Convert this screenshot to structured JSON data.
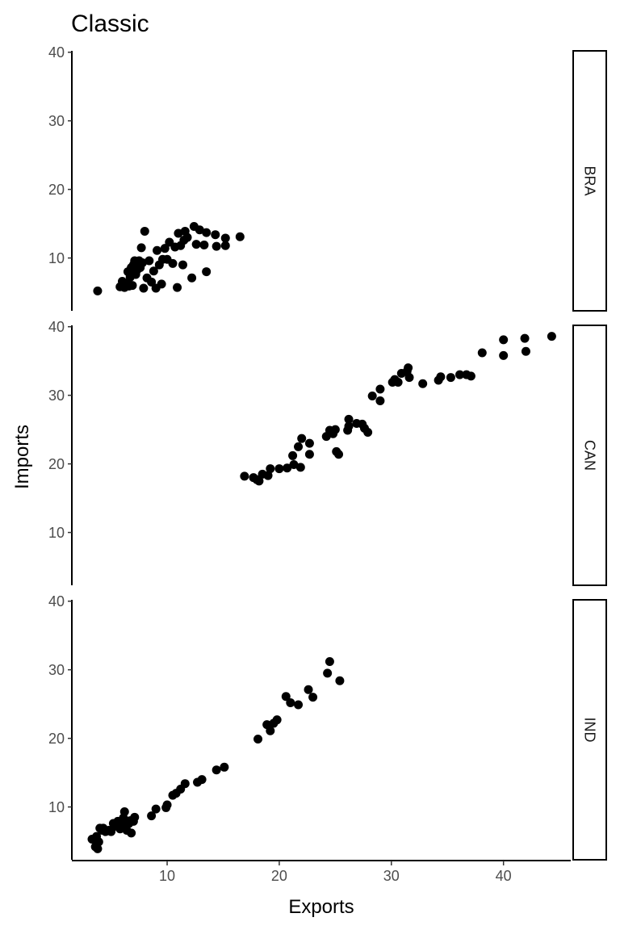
{
  "chart_data": {
    "type": "scatter",
    "title": "Classic",
    "xlabel": "Exports",
    "ylabel": "Imports",
    "xlim": [
      1.5,
      46
    ],
    "ylim": [
      2.3,
      40.2
    ],
    "x_ticks": [
      10,
      20,
      30,
      40
    ],
    "y_ticks": [
      10,
      20,
      30,
      40
    ],
    "grid": false,
    "legend": "none",
    "point_color": "#000000",
    "facets": [
      {
        "label": "BRA",
        "points": [
          [
            3.8,
            5.2
          ],
          [
            5.8,
            5.8
          ],
          [
            6.0,
            6.6
          ],
          [
            6.2,
            5.7
          ],
          [
            6.4,
            6.3
          ],
          [
            6.5,
            8.0
          ],
          [
            6.6,
            5.9
          ],
          [
            6.7,
            7.2
          ],
          [
            6.8,
            8.6
          ],
          [
            6.9,
            6.0
          ],
          [
            7.0,
            9.0
          ],
          [
            7.1,
            9.6
          ],
          [
            7.2,
            7.6
          ],
          [
            7.3,
            8.2
          ],
          [
            7.4,
            9.0
          ],
          [
            7.5,
            9.6
          ],
          [
            7.6,
            8.6
          ],
          [
            7.7,
            11.5
          ],
          [
            7.8,
            9.3
          ],
          [
            7.9,
            5.6
          ],
          [
            8.0,
            13.9
          ],
          [
            8.2,
            7.1
          ],
          [
            8.4,
            9.6
          ],
          [
            8.6,
            6.5
          ],
          [
            8.8,
            8.1
          ],
          [
            9.0,
            5.6
          ],
          [
            9.1,
            11.1
          ],
          [
            9.3,
            9.0
          ],
          [
            9.5,
            6.2
          ],
          [
            9.6,
            9.8
          ],
          [
            9.8,
            11.4
          ],
          [
            10.0,
            9.8
          ],
          [
            10.2,
            12.3
          ],
          [
            10.5,
            9.2
          ],
          [
            10.7,
            11.6
          ],
          [
            10.9,
            5.7
          ],
          [
            11.0,
            13.6
          ],
          [
            11.2,
            11.8
          ],
          [
            11.4,
            9.0
          ],
          [
            11.5,
            12.6
          ],
          [
            11.6,
            13.9
          ],
          [
            11.8,
            13.0
          ],
          [
            12.2,
            7.1
          ],
          [
            12.4,
            14.6
          ],
          [
            12.6,
            12.0
          ],
          [
            12.9,
            14.1
          ],
          [
            13.3,
            11.9
          ],
          [
            13.5,
            13.7
          ],
          [
            13.5,
            8.0
          ],
          [
            14.3,
            13.4
          ],
          [
            14.4,
            11.7
          ],
          [
            15.2,
            11.8
          ],
          [
            15.2,
            12.9
          ],
          [
            16.5,
            13.1
          ]
        ]
      },
      {
        "label": "CAN",
        "points": [
          [
            16.9,
            18.2
          ],
          [
            17.7,
            18.0
          ],
          [
            18.0,
            17.7
          ],
          [
            18.2,
            17.5
          ],
          [
            18.5,
            18.5
          ],
          [
            19.0,
            18.3
          ],
          [
            19.2,
            19.3
          ],
          [
            20.0,
            19.3
          ],
          [
            20.7,
            19.4
          ],
          [
            21.2,
            21.2
          ],
          [
            21.3,
            19.9
          ],
          [
            21.7,
            22.5
          ],
          [
            21.9,
            19.5
          ],
          [
            22.0,
            23.7
          ],
          [
            22.7,
            23.0
          ],
          [
            22.7,
            21.4
          ],
          [
            24.2,
            24.0
          ],
          [
            24.5,
            24.9
          ],
          [
            24.8,
            24.4
          ],
          [
            25.0,
            25.0
          ],
          [
            25.1,
            21.8
          ],
          [
            25.3,
            21.4
          ],
          [
            26.1,
            24.9
          ],
          [
            26.2,
            25.5
          ],
          [
            26.2,
            26.5
          ],
          [
            26.9,
            25.9
          ],
          [
            27.4,
            25.8
          ],
          [
            27.6,
            25.2
          ],
          [
            27.9,
            24.6
          ],
          [
            28.3,
            29.9
          ],
          [
            29.0,
            30.9
          ],
          [
            29.0,
            29.2
          ],
          [
            30.1,
            31.9
          ],
          [
            30.3,
            32.3
          ],
          [
            30.6,
            31.9
          ],
          [
            30.9,
            33.2
          ],
          [
            31.4,
            33.5
          ],
          [
            31.5,
            34.0
          ],
          [
            31.6,
            32.6
          ],
          [
            32.8,
            31.7
          ],
          [
            34.2,
            32.2
          ],
          [
            34.4,
            32.7
          ],
          [
            35.3,
            32.6
          ],
          [
            36.1,
            33.0
          ],
          [
            36.7,
            33.0
          ],
          [
            37.1,
            32.8
          ],
          [
            38.1,
            36.2
          ],
          [
            40.0,
            38.1
          ],
          [
            40.0,
            35.8
          ],
          [
            41.9,
            38.3
          ],
          [
            42.0,
            36.4
          ],
          [
            44.3,
            38.6
          ]
        ]
      },
      {
        "label": "IND",
        "points": [
          [
            3.3,
            5.3
          ],
          [
            3.6,
            4.2
          ],
          [
            3.7,
            5.7
          ],
          [
            3.8,
            3.9
          ],
          [
            3.9,
            4.9
          ],
          [
            4.0,
            6.9
          ],
          [
            4.2,
            6.6
          ],
          [
            4.3,
            6.9
          ],
          [
            4.5,
            6.4
          ],
          [
            4.8,
            6.6
          ],
          [
            5.0,
            6.4
          ],
          [
            5.2,
            7.6
          ],
          [
            5.4,
            7.2
          ],
          [
            5.6,
            7.9
          ],
          [
            5.8,
            6.8
          ],
          [
            6.0,
            7.6
          ],
          [
            6.1,
            8.4
          ],
          [
            6.2,
            9.3
          ],
          [
            6.3,
            7.2
          ],
          [
            6.4,
            6.6
          ],
          [
            6.6,
            7.6
          ],
          [
            6.7,
            8.0
          ],
          [
            6.8,
            6.2
          ],
          [
            7.0,
            7.9
          ],
          [
            7.1,
            8.5
          ],
          [
            8.6,
            8.7
          ],
          [
            9.0,
            9.7
          ],
          [
            9.9,
            9.9
          ],
          [
            10.0,
            10.3
          ],
          [
            10.5,
            11.7
          ],
          [
            10.8,
            12.0
          ],
          [
            11.2,
            12.6
          ],
          [
            11.6,
            13.4
          ],
          [
            12.7,
            13.6
          ],
          [
            13.1,
            14.0
          ],
          [
            14.4,
            15.4
          ],
          [
            15.1,
            15.8
          ],
          [
            18.1,
            19.9
          ],
          [
            18.9,
            22.0
          ],
          [
            19.2,
            21.1
          ],
          [
            19.5,
            22.2
          ],
          [
            19.8,
            22.7
          ],
          [
            20.6,
            26.1
          ],
          [
            21.0,
            25.2
          ],
          [
            21.7,
            24.9
          ],
          [
            22.6,
            27.1
          ],
          [
            23.0,
            26.0
          ],
          [
            24.3,
            29.5
          ],
          [
            24.5,
            31.2
          ],
          [
            25.4,
            28.4
          ]
        ]
      }
    ]
  }
}
